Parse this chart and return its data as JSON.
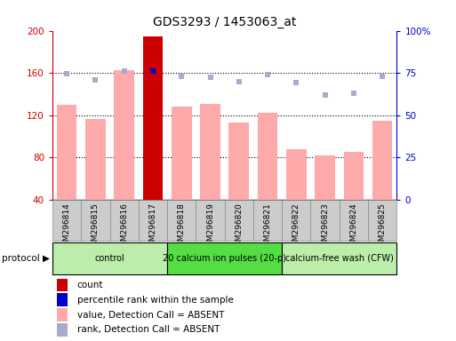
{
  "title": "GDS3293 / 1453063_at",
  "samples": [
    "GSM296814",
    "GSM296815",
    "GSM296816",
    "GSM296817",
    "GSM296818",
    "GSM296819",
    "GSM296820",
    "GSM296821",
    "GSM296822",
    "GSM296823",
    "GSM296824",
    "GSM296825"
  ],
  "bar_values": [
    130,
    116,
    163,
    195,
    128,
    131,
    113,
    122,
    88,
    82,
    85,
    115
  ],
  "bar_colors": [
    "#ffaaaa",
    "#ffaaaa",
    "#ffaaaa",
    "#cc0000",
    "#ffaaaa",
    "#ffaaaa",
    "#ffaaaa",
    "#ffaaaa",
    "#ffaaaa",
    "#ffaaaa",
    "#ffaaaa",
    "#ffaaaa"
  ],
  "rank_values": [
    159,
    153,
    162,
    162,
    157,
    156,
    152,
    158,
    151,
    139,
    141,
    157
  ],
  "rank_colors": [
    "#aaaacc",
    "#aaaacc",
    "#aaaacc",
    "#0000cc",
    "#aaaacc",
    "#aaaacc",
    "#aaaacc",
    "#aaaacc",
    "#aaaacc",
    "#aaaacc",
    "#aaaacc",
    "#aaaacc"
  ],
  "ylim_left": [
    40,
    200
  ],
  "ylim_right": [
    0,
    100
  ],
  "yticks_left": [
    40,
    80,
    120,
    160,
    200
  ],
  "yticks_right": [
    0,
    25,
    50,
    75,
    100
  ],
  "ytick_right_labels": [
    "0",
    "25",
    "50",
    "75",
    "100%"
  ],
  "hgrid_values": [
    80,
    120,
    160
  ],
  "protocol_groups": [
    {
      "label": "control",
      "start": 0,
      "end": 3,
      "color": "#bbeeaa"
    },
    {
      "label": "20 calcium ion pulses (20-p)",
      "start": 4,
      "end": 7,
      "color": "#55dd44"
    },
    {
      "label": "calcium-free wash (CFW)",
      "start": 8,
      "end": 11,
      "color": "#bbeeaa"
    }
  ],
  "legend_items": [
    {
      "color": "#cc0000",
      "label": "count"
    },
    {
      "color": "#0000cc",
      "label": "percentile rank within the sample"
    },
    {
      "color": "#ffaaaa",
      "label": "value, Detection Call = ABSENT"
    },
    {
      "color": "#aaaacc",
      "label": "rank, Detection Call = ABSENT"
    }
  ],
  "bg_color": "#ffffff",
  "left_axis_color": "#cc0000",
  "right_axis_color": "#0000cc",
  "sample_box_color": "#cccccc",
  "sample_box_edge": "#888888"
}
